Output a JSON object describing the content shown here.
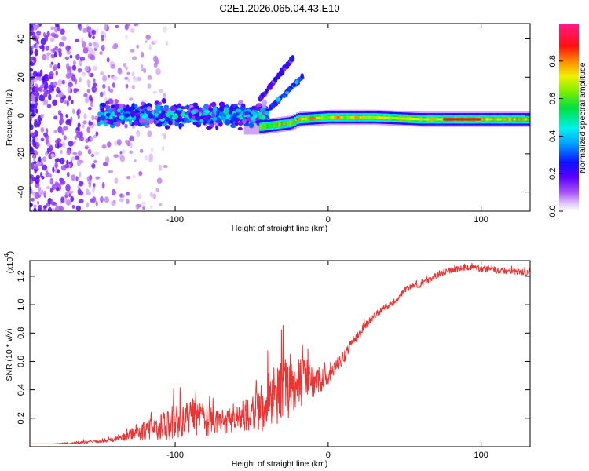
{
  "title": "C2E1.2026.065.04.43.E10",
  "chart_data": [
    {
      "type": "heatmap",
      "name": "spectrogram",
      "xlabel": "Height of straight line (km)",
      "ylabel": "Frequency (Hz)",
      "xlim": [
        -195,
        132
      ],
      "ylim": [
        -50,
        48
      ],
      "x_ticks": [
        -100,
        0,
        100
      ],
      "x_tick_labels": [
        "-100",
        "0",
        "100"
      ],
      "y_ticks": [
        -40,
        -20,
        0,
        20,
        40
      ],
      "y_tick_labels": [
        "-40",
        "-20",
        "0",
        "20",
        "40"
      ],
      "colorbar": {
        "label": "Normalized spectral amplitude",
        "range": [
          0,
          1
        ],
        "ticks": [
          0.0,
          0.2,
          0.4,
          0.6,
          0.8
        ],
        "tick_labels": [
          "0.0",
          "0.2",
          "0.4",
          "0.6",
          "0.8"
        ]
      },
      "features": [
        {
          "name": "noise-cloud",
          "x_range": [
            -195,
            -125
          ],
          "freq_range": [
            -50,
            48
          ],
          "amplitude": 0.15
        },
        {
          "name": "scattered-band",
          "x_range": [
            -150,
            -40
          ],
          "freq_center": 0,
          "freq_spread": 6,
          "amplitude": 0.35
        },
        {
          "name": "rising-branch-1",
          "x": [
            -45,
            -23
          ],
          "freq": [
            8,
            30
          ],
          "amplitude": 0.2
        },
        {
          "name": "rising-branch-2",
          "x": [
            -40,
            -17
          ],
          "freq": [
            2,
            20
          ],
          "amplitude": 0.3
        },
        {
          "name": "main-band",
          "x": [
            -45,
            -25,
            -20,
            0,
            30,
            60,
            90,
            132
          ],
          "freq": [
            -6,
            -4,
            -2,
            -1,
            -1,
            -2,
            -2,
            -2
          ],
          "amplitude": 0.75
        },
        {
          "name": "peak-region",
          "x_range": [
            75,
            100
          ],
          "freq": -2,
          "amplitude": 1.0
        }
      ]
    },
    {
      "type": "line",
      "name": "snr",
      "xlabel": "Height of straight line (km)",
      "ylabel": "SNR (10 * v/v)",
      "y_scale_label": "(x10",
      "y_scale_exponent": "4",
      "y_multiplier": 10000,
      "xlim": [
        -195,
        132
      ],
      "ylim": [
        0,
        1.31
      ],
      "x_ticks": [
        -100,
        0,
        100
      ],
      "x_tick_labels": [
        "-100",
        "0",
        "100"
      ],
      "y_ticks": [
        0.2,
        0.4,
        0.6,
        0.8,
        1.0,
        1.2
      ],
      "y_tick_labels": [
        "0.2",
        "0.4",
        "0.6",
        "0.8",
        "1.0",
        "1.2"
      ],
      "series": [
        {
          "name": "SNR",
          "color": "#ee3333",
          "x": [
            -195,
            -180,
            -160,
            -145,
            -135,
            -125,
            -110,
            -100,
            -90,
            -80,
            -70,
            -60,
            -50,
            -40,
            -30,
            -20,
            -15,
            -10,
            -5,
            0,
            5,
            10,
            15,
            20,
            25,
            30,
            35,
            40,
            45,
            50,
            55,
            60,
            70,
            80,
            90,
            100,
            110,
            120,
            132
          ],
          "y": [
            0.02,
            0.02,
            0.03,
            0.04,
            0.06,
            0.09,
            0.13,
            0.16,
            0.2,
            0.17,
            0.16,
            0.18,
            0.23,
            0.29,
            0.37,
            0.42,
            0.47,
            0.44,
            0.46,
            0.5,
            0.56,
            0.62,
            0.72,
            0.78,
            0.86,
            0.92,
            0.96,
            1.0,
            1.03,
            1.1,
            1.13,
            1.14,
            1.2,
            1.24,
            1.26,
            1.25,
            1.24,
            1.23,
            1.22
          ],
          "noise": [
            0,
            0,
            0.01,
            0.01,
            0.02,
            0.05,
            0.08,
            0.12,
            0.12,
            0.1,
            0.08,
            0.08,
            0.12,
            0.18,
            0.2,
            0.18,
            0.14,
            0.1,
            0.08,
            0.06,
            0.04,
            0.04,
            0.03,
            0.03,
            0.03,
            0.02,
            0.02,
            0.02,
            0.02,
            0.02,
            0.02,
            0.02,
            0.02,
            0.02,
            0.02,
            0.02,
            0.02,
            0.02,
            0.02
          ]
        }
      ]
    }
  ]
}
